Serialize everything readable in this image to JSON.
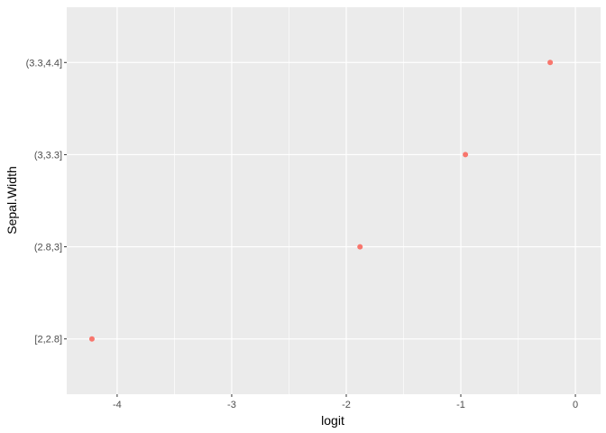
{
  "chart_data": {
    "type": "scatter",
    "title": "",
    "xlabel": "logit",
    "ylabel": "Sepal.Width",
    "xlim": [
      -4.44,
      0.22
    ],
    "x_ticks": [
      -4,
      -3,
      -2,
      -1,
      0
    ],
    "x_tick_labels": [
      "-4",
      "-3",
      "-2",
      "-1",
      "0"
    ],
    "categories": [
      "[2,2.8]",
      "(2.8,3]",
      "(3,3.3]",
      "(3.3,4.4]"
    ],
    "points": [
      {
        "x": -4.22,
        "y": "[2,2.8]"
      },
      {
        "x": -1.88,
        "y": "(2.8,3]"
      },
      {
        "x": -0.96,
        "y": "(3,3.3]"
      },
      {
        "x": -0.22,
        "y": "(3.3,4.4]"
      }
    ],
    "grid": true,
    "point_color": "#F8766D",
    "panel_color": "#EBEBEB",
    "grid_color": "#FFFFFF"
  }
}
